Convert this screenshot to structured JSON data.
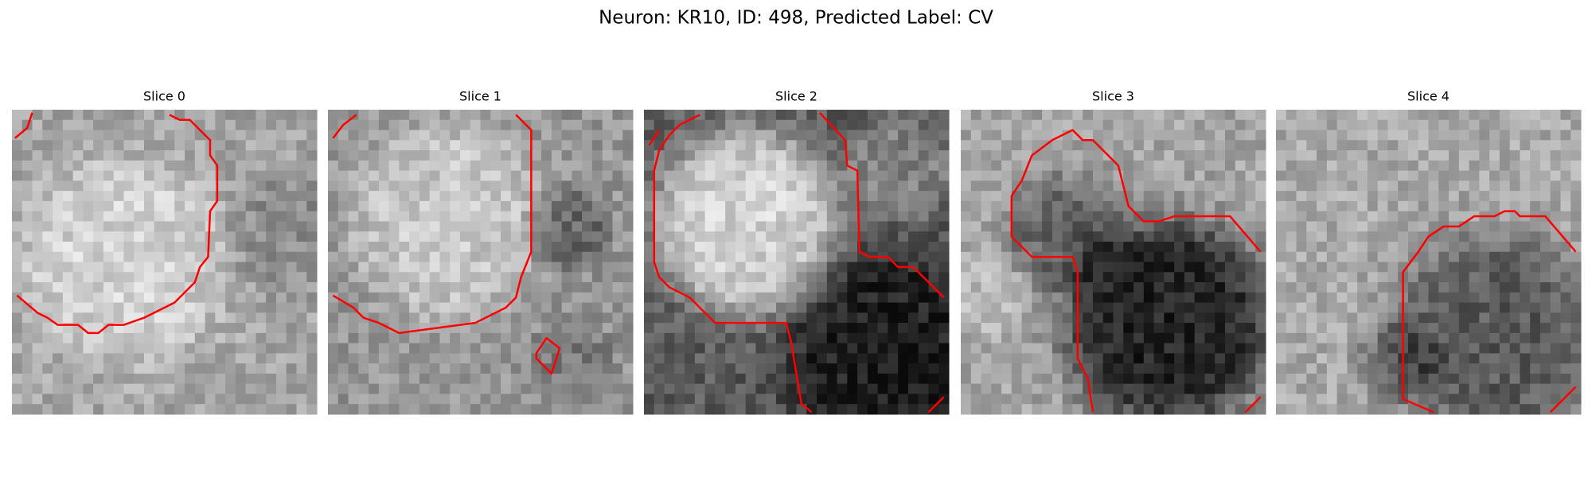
{
  "title": "Neuron: KR10, ID: 498, Predicted Label: CV",
  "panels": [
    {
      "title": "Slice 0"
    },
    {
      "title": "Slice 1"
    },
    {
      "title": "Slice 2"
    },
    {
      "title": "Slice 3"
    },
    {
      "title": "Slice 4"
    }
  ]
}
